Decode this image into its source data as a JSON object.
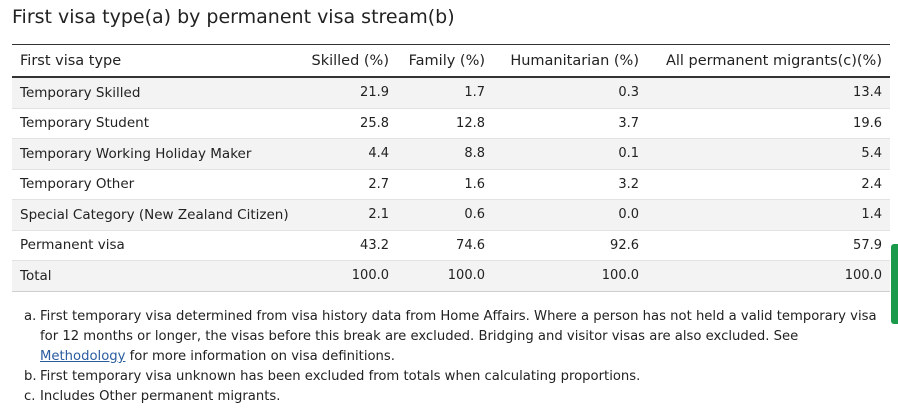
{
  "title": "First visa type(a) by permanent visa stream(b)",
  "table": {
    "headers": [
      "First visa type",
      "Skilled (%)",
      "Family (%)",
      "Humanitarian (%)",
      "All permanent migrants(c)(%)"
    ],
    "rows": [
      {
        "label": "Temporary Skilled",
        "values": [
          "21.9",
          "1.7",
          "0.3",
          "13.4"
        ]
      },
      {
        "label": "Temporary Student",
        "values": [
          "25.8",
          "12.8",
          "3.7",
          "19.6"
        ]
      },
      {
        "label": "Temporary Working Holiday Maker",
        "values": [
          "4.4",
          "8.8",
          "0.1",
          "5.4"
        ]
      },
      {
        "label": "Temporary Other",
        "values": [
          "2.7",
          "1.6",
          "3.2",
          "2.4"
        ]
      },
      {
        "label": "Special Category (New Zealand Citizen)",
        "values": [
          "2.1",
          "0.6",
          "0.0",
          "1.4"
        ]
      },
      {
        "label": "Permanent visa",
        "values": [
          "43.2",
          "74.6",
          "92.6",
          "57.9"
        ]
      },
      {
        "label": "Total",
        "values": [
          "100.0",
          "100.0",
          "100.0",
          "100.0"
        ]
      }
    ]
  },
  "notes": [
    {
      "marker": "a.",
      "text_before": "First temporary visa determined from visa history data from Home Affairs. Where a person has not held a valid temporary visa for 12 months or longer, the visas before this break are excluded. Bridging and visitor visas are also excluded. See ",
      "link": "Methodology",
      "text_after": " for more information on visa definitions."
    },
    {
      "marker": "b.",
      "text": "First temporary visa unknown has been excluded from totals when calculating proportions."
    },
    {
      "marker": "c.",
      "text": "Includes Other permanent migrants."
    }
  ],
  "colors": {
    "row_alt": "#f3f3f3",
    "link": "#2a5d9f",
    "scroll_indicator": "#1b9a4c"
  }
}
